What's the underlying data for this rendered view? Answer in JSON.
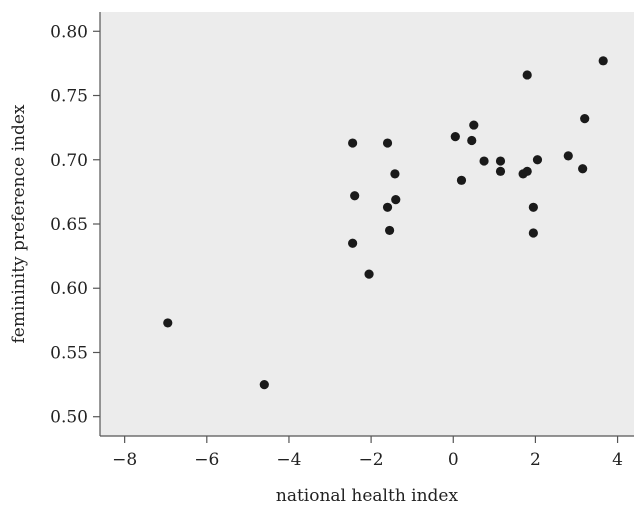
{
  "chart_data": {
    "type": "scatter",
    "xlabel": "national health index",
    "ylabel": "femininity preference index",
    "xlim": [
      -8.6,
      4.4
    ],
    "ylim": [
      0.485,
      0.815
    ],
    "xticks": [
      -8,
      -6,
      -4,
      -2,
      0,
      2,
      4
    ],
    "xtick_labels": [
      "−8",
      "−6",
      "−4",
      "−2",
      "0",
      "2",
      "4"
    ],
    "yticks": [
      0.5,
      0.55,
      0.6,
      0.65,
      0.7,
      0.75,
      0.8
    ],
    "ytick_labels": [
      "0.50",
      "0.55",
      "0.60",
      "0.65",
      "0.70",
      "0.75",
      "0.80"
    ],
    "grid": false,
    "colors": {
      "plot_background": "#ececec",
      "point": "#1a1a1a"
    },
    "points": [
      {
        "x": -6.95,
        "y": 0.573
      },
      {
        "x": -4.6,
        "y": 0.525
      },
      {
        "x": -2.45,
        "y": 0.713
      },
      {
        "x": -2.4,
        "y": 0.672
      },
      {
        "x": -2.45,
        "y": 0.635
      },
      {
        "x": -2.05,
        "y": 0.611
      },
      {
        "x": -1.6,
        "y": 0.713
      },
      {
        "x": -1.6,
        "y": 0.663
      },
      {
        "x": -1.55,
        "y": 0.645
      },
      {
        "x": -1.42,
        "y": 0.689
      },
      {
        "x": -1.4,
        "y": 0.669
      },
      {
        "x": 0.05,
        "y": 0.718
      },
      {
        "x": 0.2,
        "y": 0.684
      },
      {
        "x": 0.45,
        "y": 0.715
      },
      {
        "x": 0.5,
        "y": 0.727
      },
      {
        "x": 0.75,
        "y": 0.699
      },
      {
        "x": 1.15,
        "y": 0.699
      },
      {
        "x": 1.15,
        "y": 0.691
      },
      {
        "x": 1.7,
        "y": 0.689
      },
      {
        "x": 1.8,
        "y": 0.691
      },
      {
        "x": 1.8,
        "y": 0.766
      },
      {
        "x": 1.95,
        "y": 0.663
      },
      {
        "x": 1.95,
        "y": 0.643
      },
      {
        "x": 2.05,
        "y": 0.7
      },
      {
        "x": 2.8,
        "y": 0.703
      },
      {
        "x": 3.15,
        "y": 0.693
      },
      {
        "x": 3.2,
        "y": 0.732
      },
      {
        "x": 3.65,
        "y": 0.777
      }
    ]
  }
}
